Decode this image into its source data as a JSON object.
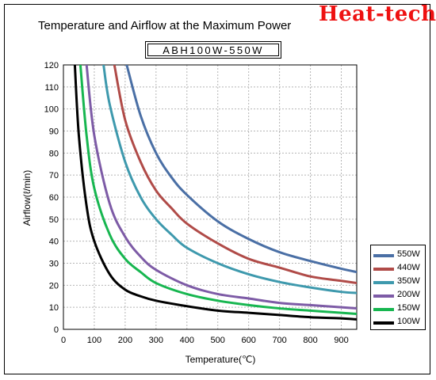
{
  "brand": "Heat-tech",
  "chart_data": {
    "type": "line",
    "title": "Temperature and Airflow at the Maximum Power",
    "subtitle": "ABH100W-550W",
    "xlabel": "Temperature(℃)",
    "ylabel": "Airflow(ℓ/min)",
    "xlim": [
      0,
      950
    ],
    "ylim": [
      0,
      120
    ],
    "xticks": [
      0,
      100,
      200,
      300,
      400,
      500,
      600,
      700,
      800,
      900
    ],
    "yticks": [
      0,
      10,
      20,
      30,
      40,
      50,
      60,
      70,
      80,
      90,
      100,
      110,
      120
    ],
    "grid": true,
    "legend_position": "right",
    "series": [
      {
        "name": "550W",
        "color": "#4a6fa5",
        "x": [
          205,
          250,
          300,
          350,
          400,
          500,
          600,
          700,
          800,
          900,
          950
        ],
        "y": [
          120,
          97,
          80,
          69,
          61,
          49,
          41,
          35,
          31,
          27.5,
          26
        ]
      },
      {
        "name": "440W",
        "color": "#b04b48",
        "x": [
          165,
          200,
          250,
          300,
          350,
          400,
          500,
          600,
          700,
          800,
          900,
          950
        ],
        "y": [
          120,
          95,
          76,
          63,
          55,
          48,
          39,
          32,
          28,
          24,
          22,
          21
        ]
      },
      {
        "name": "350W",
        "color": "#3e99ad",
        "x": [
          130,
          150,
          200,
          250,
          300,
          350,
          400,
          500,
          600,
          700,
          800,
          900,
          950
        ],
        "y": [
          120,
          102,
          76,
          60,
          50,
          43,
          37,
          30,
          25,
          21.5,
          19,
          17,
          16.5
        ]
      },
      {
        "name": "200W",
        "color": "#7d5ba6",
        "x": [
          75,
          100,
          150,
          200,
          250,
          300,
          400,
          500,
          600,
          700,
          800,
          900,
          950
        ],
        "y": [
          120,
          88,
          57,
          42,
          33,
          27,
          20,
          16,
          14,
          12,
          11,
          10,
          9.5
        ]
      },
      {
        "name": "150W",
        "color": "#17b650",
        "x": [
          55,
          75,
          100,
          150,
          200,
          250,
          300,
          400,
          500,
          600,
          700,
          800,
          900,
          950
        ],
        "y": [
          120,
          88,
          64,
          43,
          32,
          26,
          21,
          16,
          13,
          11,
          9.5,
          8.5,
          7.5,
          7
        ]
      },
      {
        "name": "100W",
        "color": "#000000",
        "x": [
          37,
          50,
          75,
          100,
          150,
          200,
          250,
          300,
          400,
          500,
          600,
          700,
          800,
          900,
          950
        ],
        "y": [
          120,
          88,
          56,
          40,
          25,
          18,
          15,
          13,
          10.5,
          8.5,
          7.5,
          6.5,
          5.5,
          5,
          4.5
        ]
      }
    ]
  }
}
